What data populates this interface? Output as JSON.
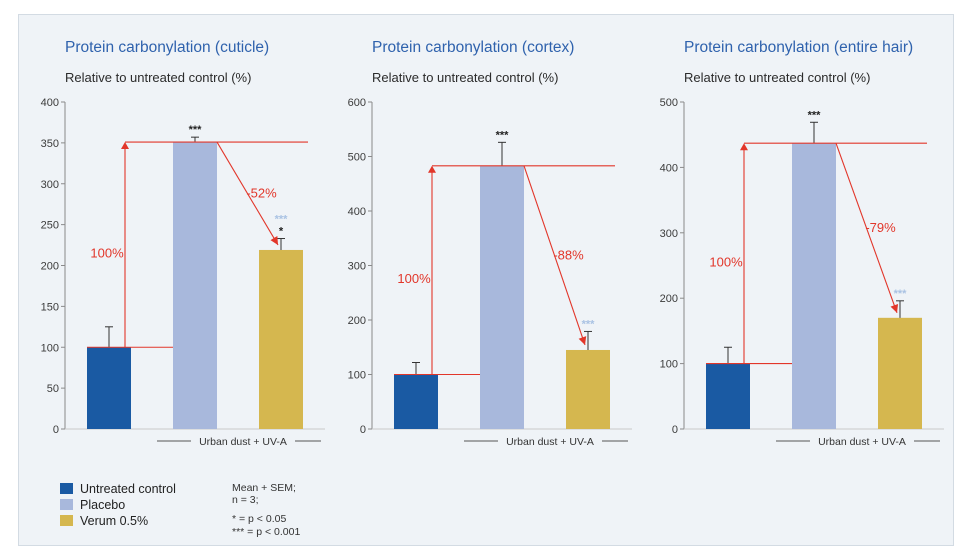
{
  "colors": {
    "untreated": "#1a5aa3",
    "placebo": "#a8b8dc",
    "verum": "#d5b74f",
    "arrow": "#e2362a",
    "title": "#2f62ad",
    "sig_light": "#a9c2e3"
  },
  "chart_data": [
    {
      "type": "bar",
      "title": "Protein carbonylation (cuticle)",
      "subtitle": "Relative to untreated control (%)",
      "ylim": [
        0,
        400
      ],
      "yticks": [
        0,
        50,
        100,
        150,
        200,
        250,
        300,
        350,
        400
      ],
      "categories": [
        "Untreated control",
        "Placebo",
        "Verum 0.5%"
      ],
      "values": [
        100,
        351,
        219
      ],
      "errors": [
        25,
        6,
        14
      ],
      "significance": [
        "",
        "***",
        "*"
      ],
      "significance_light": [
        "",
        "",
        "***"
      ],
      "increase_label": "100%",
      "change_label": "-52%",
      "group_label": "Urban dust + UV-A",
      "grid": false
    },
    {
      "type": "bar",
      "title": "Protein carbonylation (cortex)",
      "subtitle": "Relative to untreated control (%)",
      "ylim": [
        0,
        600
      ],
      "yticks": [
        0,
        100,
        200,
        300,
        400,
        500,
        600
      ],
      "categories": [
        "Untreated control",
        "Placebo",
        "Verum 0.5%"
      ],
      "values": [
        100,
        483,
        145
      ],
      "errors": [
        22,
        43,
        34
      ],
      "significance": [
        "",
        "***",
        ""
      ],
      "significance_light": [
        "",
        "",
        "***"
      ],
      "increase_label": "100%",
      "change_label": "-88%",
      "group_label": "Urban dust + UV-A",
      "grid": false
    },
    {
      "type": "bar",
      "title": "Protein carbonylation (entire hair)",
      "subtitle": "Relative to untreated control (%)",
      "ylim": [
        0,
        500
      ],
      "yticks": [
        0,
        100,
        200,
        300,
        400,
        500
      ],
      "categories": [
        "Untreated control",
        "Placebo",
        "Verum 0.5%"
      ],
      "values": [
        100,
        437,
        170
      ],
      "errors": [
        25,
        32,
        26
      ],
      "significance": [
        "",
        "***",
        ""
      ],
      "significance_light": [
        "",
        "",
        "***"
      ],
      "increase_label": "100%",
      "change_label": "-79%",
      "group_label": "Urban dust + UV-A",
      "grid": false
    }
  ],
  "legend": {
    "items": [
      {
        "label": "Untreated control",
        "color": "#1a5aa3"
      },
      {
        "label": "Placebo",
        "color": "#a8b8dc"
      },
      {
        "label": "Verum 0.5%",
        "color": "#d5b74f"
      }
    ]
  },
  "notes": {
    "line1": "Mean + SEM;",
    "line2": "n = 3;",
    "line3": "*     = p < 0.05",
    "line4": "*** = p < 0.001"
  }
}
